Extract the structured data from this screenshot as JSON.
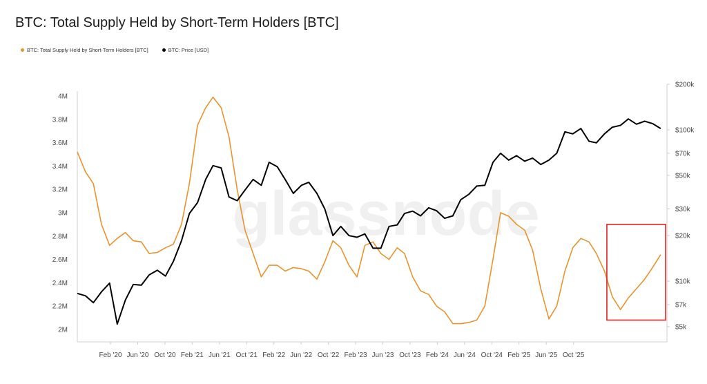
{
  "chart_data": {
    "type": "line",
    "title": "BTC: Total Supply Held by Short-Term Holders [BTC]",
    "watermark": "glassnode",
    "x_tick_labels": [
      "Feb '20",
      "Jun '20",
      "Oct '20",
      "Feb '21",
      "Jun '21",
      "Oct '21",
      "Feb '22",
      "Jun '22",
      "Oct '22",
      "Feb '23",
      "Jun '23",
      "Oct '23",
      "Feb '24",
      "Jun '24",
      "Oct '24",
      "Feb '25",
      "Jun '25",
      "Oct '25"
    ],
    "y_left": {
      "ticks": [
        "2M",
        "2.2M",
        "2.4M",
        "2.6M",
        "2.8M",
        "3M",
        "3.2M",
        "3.4M",
        "3.6M",
        "3.8M",
        "4M"
      ],
      "ylim": [
        2000000,
        4000000
      ]
    },
    "y_right": {
      "scale": "log",
      "ticks": [
        "$5k",
        "$7k",
        "$10k",
        "$20k",
        "$30k",
        "$50k",
        "$70k",
        "$100k",
        "$200k"
      ],
      "tick_values": [
        5000,
        7000,
        10000,
        20000,
        30000,
        50000,
        70000,
        100000,
        200000
      ],
      "ylim": [
        5000,
        200000
      ]
    },
    "series": [
      {
        "name": "BTC: Total Supply Held by Short-Term Holders [BTC]",
        "axis": "left",
        "color": "#E8932E",
        "points": [
          [
            "2019-10-01",
            3520000
          ],
          [
            "2019-11-01",
            3350000
          ],
          [
            "2019-12-01",
            3250000
          ],
          [
            "2020-01-01",
            2900000
          ],
          [
            "2020-02-01",
            2720000
          ],
          [
            "2020-03-01",
            2780000
          ],
          [
            "2020-04-01",
            2830000
          ],
          [
            "2020-05-01",
            2760000
          ],
          [
            "2020-06-01",
            2750000
          ],
          [
            "2020-07-01",
            2650000
          ],
          [
            "2020-08-01",
            2660000
          ],
          [
            "2020-09-01",
            2700000
          ],
          [
            "2020-10-01",
            2730000
          ],
          [
            "2020-11-01",
            2900000
          ],
          [
            "2020-12-01",
            3250000
          ],
          [
            "2021-01-01",
            3750000
          ],
          [
            "2021-02-01",
            3900000
          ],
          [
            "2021-03-01",
            3990000
          ],
          [
            "2021-04-01",
            3900000
          ],
          [
            "2021-05-01",
            3650000
          ],
          [
            "2021-06-01",
            3200000
          ],
          [
            "2021-07-01",
            2850000
          ],
          [
            "2021-08-01",
            2650000
          ],
          [
            "2021-09-01",
            2450000
          ],
          [
            "2021-10-01",
            2550000
          ],
          [
            "2021-11-01",
            2550000
          ],
          [
            "2021-12-01",
            2500000
          ],
          [
            "2022-01-01",
            2530000
          ],
          [
            "2022-02-01",
            2520000
          ],
          [
            "2022-03-01",
            2500000
          ],
          [
            "2022-04-01",
            2430000
          ],
          [
            "2022-05-01",
            2580000
          ],
          [
            "2022-06-01",
            2760000
          ],
          [
            "2022-07-01",
            2700000
          ],
          [
            "2022-08-01",
            2550000
          ],
          [
            "2022-09-01",
            2450000
          ],
          [
            "2022-10-01",
            2720000
          ],
          [
            "2022-11-01",
            2750000
          ],
          [
            "2022-12-01",
            2650000
          ],
          [
            "2023-01-01",
            2600000
          ],
          [
            "2023-02-01",
            2700000
          ],
          [
            "2023-03-01",
            2650000
          ],
          [
            "2023-04-01",
            2450000
          ],
          [
            "2023-05-01",
            2330000
          ],
          [
            "2023-06-01",
            2300000
          ],
          [
            "2023-07-01",
            2200000
          ],
          [
            "2023-08-01",
            2150000
          ],
          [
            "2023-09-01",
            2050000
          ],
          [
            "2023-10-01",
            2050000
          ],
          [
            "2023-11-01",
            2060000
          ],
          [
            "2023-12-01",
            2080000
          ],
          [
            "2024-01-01",
            2200000
          ],
          [
            "2024-02-01",
            2600000
          ],
          [
            "2024-03-01",
            3000000
          ],
          [
            "2024-04-01",
            2970000
          ],
          [
            "2024-05-01",
            2900000
          ],
          [
            "2024-06-01",
            2850000
          ],
          [
            "2024-07-01",
            2680000
          ],
          [
            "2024-08-01",
            2350000
          ],
          [
            "2024-09-01",
            2090000
          ],
          [
            "2024-10-01",
            2200000
          ],
          [
            "2024-11-01",
            2500000
          ],
          [
            "2024-12-01",
            2700000
          ],
          [
            "2025-01-01",
            2780000
          ],
          [
            "2025-02-01",
            2750000
          ],
          [
            "2025-03-01",
            2650000
          ],
          [
            "2025-04-01",
            2500000
          ],
          [
            "2025-05-01",
            2280000
          ],
          [
            "2025-06-01",
            2170000
          ],
          [
            "2025-07-01",
            2270000
          ],
          [
            "2025-08-01",
            2350000
          ],
          [
            "2025-09-01",
            2430000
          ],
          [
            "2025-10-01",
            2530000
          ],
          [
            "2025-11-01",
            2640000
          ]
        ]
      },
      {
        "name": "BTC: Price [USD]",
        "axis": "right",
        "color": "#000000",
        "points": [
          [
            "2019-10-01",
            8300
          ],
          [
            "2019-11-01",
            8000
          ],
          [
            "2019-12-01",
            7200
          ],
          [
            "2020-01-01",
            8500
          ],
          [
            "2020-02-01",
            9700
          ],
          [
            "2020-03-01",
            5200
          ],
          [
            "2020-04-01",
            7500
          ],
          [
            "2020-05-01",
            9500
          ],
          [
            "2020-06-01",
            9400
          ],
          [
            "2020-07-01",
            11000
          ],
          [
            "2020-08-01",
            11800
          ],
          [
            "2020-09-01",
            10800
          ],
          [
            "2020-10-01",
            13500
          ],
          [
            "2020-11-01",
            18500
          ],
          [
            "2020-12-01",
            28000
          ],
          [
            "2021-01-01",
            33000
          ],
          [
            "2021-02-01",
            47000
          ],
          [
            "2021-03-01",
            58000
          ],
          [
            "2021-04-01",
            56000
          ],
          [
            "2021-05-01",
            36000
          ],
          [
            "2021-06-01",
            34000
          ],
          [
            "2021-07-01",
            40000
          ],
          [
            "2021-08-01",
            47000
          ],
          [
            "2021-09-01",
            43000
          ],
          [
            "2021-10-01",
            61000
          ],
          [
            "2021-11-01",
            57000
          ],
          [
            "2021-12-01",
            47000
          ],
          [
            "2022-01-01",
            38000
          ],
          [
            "2022-02-01",
            43000
          ],
          [
            "2022-03-01",
            45000
          ],
          [
            "2022-04-01",
            38000
          ],
          [
            "2022-05-01",
            30000
          ],
          [
            "2022-06-01",
            20000
          ],
          [
            "2022-07-01",
            23000
          ],
          [
            "2022-08-01",
            20000
          ],
          [
            "2022-09-01",
            19500
          ],
          [
            "2022-10-01",
            20500
          ],
          [
            "2022-11-01",
            16500
          ],
          [
            "2022-12-01",
            16500
          ],
          [
            "2023-01-01",
            23000
          ],
          [
            "2023-02-01",
            23500
          ],
          [
            "2023-03-01",
            28000
          ],
          [
            "2023-04-01",
            29000
          ],
          [
            "2023-05-01",
            27000
          ],
          [
            "2023-06-01",
            30500
          ],
          [
            "2023-07-01",
            29200
          ],
          [
            "2023-08-01",
            26000
          ],
          [
            "2023-09-01",
            27000
          ],
          [
            "2023-10-01",
            34500
          ],
          [
            "2023-11-01",
            37500
          ],
          [
            "2023-12-01",
            42500
          ],
          [
            "2024-01-01",
            43000
          ],
          [
            "2024-02-01",
            61000
          ],
          [
            "2024-03-01",
            70000
          ],
          [
            "2024-04-01",
            63000
          ],
          [
            "2024-05-01",
            67500
          ],
          [
            "2024-06-01",
            62000
          ],
          [
            "2024-07-01",
            65000
          ],
          [
            "2024-08-01",
            59000
          ],
          [
            "2024-09-01",
            63000
          ],
          [
            "2024-10-01",
            70000
          ],
          [
            "2024-11-01",
            97000
          ],
          [
            "2024-12-01",
            94000
          ],
          [
            "2025-01-01",
            102000
          ],
          [
            "2025-02-01",
            84000
          ],
          [
            "2025-03-01",
            82000
          ],
          [
            "2025-04-01",
            94000
          ],
          [
            "2025-05-01",
            104000
          ],
          [
            "2025-06-01",
            107000
          ],
          [
            "2025-07-01",
            118000
          ],
          [
            "2025-08-01",
            109000
          ],
          [
            "2025-09-01",
            114000
          ],
          [
            "2025-10-01",
            110000
          ],
          [
            "2025-11-01",
            102000
          ]
        ]
      }
    ],
    "highlight_box": {
      "color": "#E02020",
      "x_range": [
        "2025-04-10",
        "2025-11-20"
      ],
      "y_range_left": [
        2080000,
        2900000
      ]
    }
  }
}
